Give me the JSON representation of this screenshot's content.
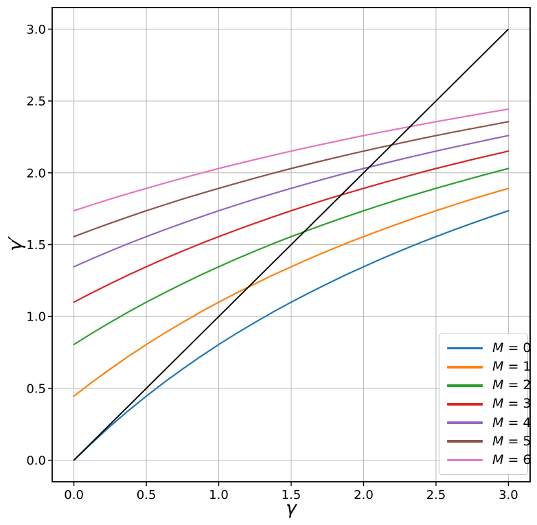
{
  "figure": {
    "background": "#ffffff"
  },
  "chart_data": {
    "type": "line",
    "title": "",
    "xlabel": "γ",
    "ylabel": "γ′",
    "grid": true,
    "grid_color": "#b9b9b9",
    "axes_color": "#000000",
    "xlim": [
      -0.15,
      3.15
    ],
    "ylim": [
      -0.15,
      3.15
    ],
    "xticks": [
      "0.0",
      "0.5",
      "1.0",
      "1.5",
      "2.0",
      "2.5",
      "3.0"
    ],
    "xtick_values": [
      0,
      0.5,
      1,
      1.5,
      2,
      2.5,
      3
    ],
    "yticks": [
      "0.0",
      "0.5",
      "1.0",
      "1.5",
      "2.0",
      "2.5",
      "3.0"
    ],
    "ytick_values": [
      0,
      0.5,
      1,
      1.5,
      2,
      2.5,
      3
    ],
    "x": [
      0,
      0.125,
      0.25,
      0.375,
      0.5,
      0.625,
      0.75,
      0.875,
      1,
      1.125,
      1.25,
      1.375,
      1.5,
      1.625,
      1.75,
      1.875,
      2,
      2.125,
      2.25,
      2.375,
      2.5,
      2.625,
      2.75,
      2.875,
      3
    ],
    "series": [
      {
        "name": "M = 0",
        "legend_var": "M",
        "legend_rest": " = 0",
        "color": "#1f77b4",
        "values": [
          0.0,
          0.121,
          0.236,
          0.344,
          0.446,
          0.543,
          0.634,
          0.722,
          0.805,
          0.884,
          0.959,
          1.031,
          1.1,
          1.165,
          1.228,
          1.289,
          1.346,
          1.402,
          1.455,
          1.507,
          1.556,
          1.603,
          1.649,
          1.693,
          1.736
        ]
      },
      {
        "name": "M = 1",
        "legend_var": "M",
        "legend_rest": " = 1",
        "color": "#ff7f0e",
        "values": [
          0.446,
          0.543,
          0.634,
          0.722,
          0.805,
          0.884,
          0.959,
          1.031,
          1.1,
          1.165,
          1.228,
          1.289,
          1.346,
          1.402,
          1.455,
          1.507,
          1.556,
          1.603,
          1.649,
          1.693,
          1.736,
          1.777,
          1.817,
          1.855,
          1.892
        ]
      },
      {
        "name": "M = 2",
        "legend_var": "M",
        "legend_rest": " = 2",
        "color": "#2ca02c",
        "values": [
          0.805,
          0.884,
          0.959,
          1.031,
          1.1,
          1.165,
          1.228,
          1.289,
          1.346,
          1.402,
          1.455,
          1.507,
          1.556,
          1.603,
          1.649,
          1.693,
          1.736,
          1.777,
          1.817,
          1.855,
          1.892,
          1.928,
          1.963,
          1.997,
          2.03
        ]
      },
      {
        "name": "M = 3",
        "legend_var": "M",
        "legend_rest": " = 3",
        "color": "#d62728",
        "values": [
          1.1,
          1.165,
          1.228,
          1.289,
          1.346,
          1.402,
          1.455,
          1.507,
          1.556,
          1.603,
          1.649,
          1.693,
          1.736,
          1.777,
          1.817,
          1.855,
          1.892,
          1.928,
          1.963,
          1.997,
          2.03,
          2.061,
          2.092,
          2.122,
          2.151
        ]
      },
      {
        "name": "M = 4",
        "legend_var": "M",
        "legend_rest": " = 4",
        "color": "#9467bd",
        "values": [
          1.346,
          1.402,
          1.455,
          1.507,
          1.556,
          1.603,
          1.649,
          1.693,
          1.736,
          1.777,
          1.817,
          1.855,
          1.892,
          1.928,
          1.963,
          1.997,
          2.03,
          2.061,
          2.092,
          2.122,
          2.151,
          2.179,
          2.206,
          2.233,
          2.259
        ]
      },
      {
        "name": "M = 5",
        "legend_var": "M",
        "legend_rest": " = 5",
        "color": "#8c564b",
        "values": [
          1.556,
          1.603,
          1.649,
          1.693,
          1.736,
          1.777,
          1.817,
          1.855,
          1.892,
          1.928,
          1.963,
          1.997,
          2.03,
          2.061,
          2.092,
          2.122,
          2.151,
          2.179,
          2.206,
          2.233,
          2.259,
          2.284,
          2.308,
          2.332,
          2.356
        ]
      },
      {
        "name": "M = 6",
        "legend_var": "M",
        "legend_rest": " = 6",
        "color": "#e377c2",
        "values": [
          1.736,
          1.777,
          1.817,
          1.855,
          1.892,
          1.928,
          1.963,
          1.997,
          2.03,
          2.061,
          2.092,
          2.122,
          2.151,
          2.179,
          2.206,
          2.233,
          2.259,
          2.284,
          2.308,
          2.332,
          2.356,
          2.378,
          2.4,
          2.422,
          2.443
        ]
      }
    ],
    "reference_line": {
      "name": "y = x",
      "color": "#000000",
      "x": [
        0,
        3
      ],
      "y": [
        0,
        3
      ]
    },
    "legend": {
      "position": "lower right"
    }
  }
}
